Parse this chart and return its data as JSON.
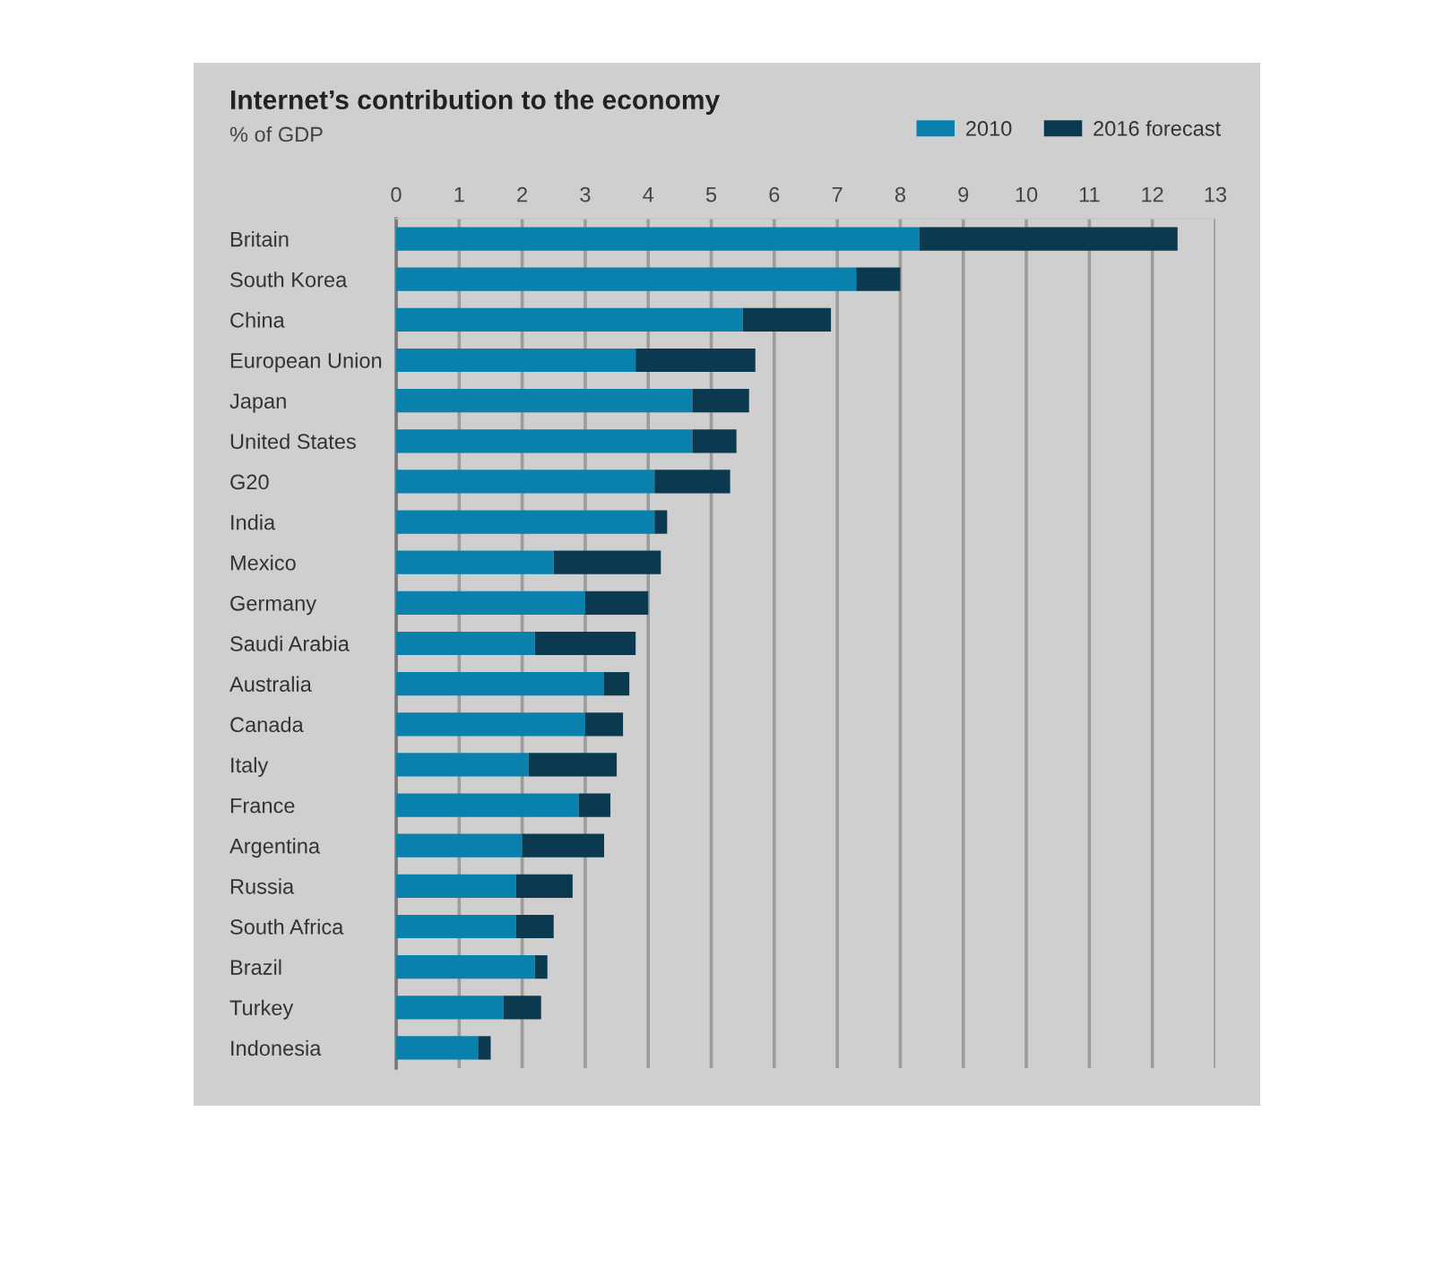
{
  "chart_data": {
    "type": "bar",
    "orientation": "horizontal",
    "stacked": true,
    "title": "Internet’s contribution to the economy",
    "subtitle": "% of GDP",
    "categories": [
      "Britain",
      "South Korea",
      "China",
      "European Union",
      "Japan",
      "United States",
      "G20",
      "India",
      "Mexico",
      "Germany",
      "Saudi Arabia",
      "Australia",
      "Canada",
      "Italy",
      "France",
      "Argentina",
      "Russia",
      "South Africa",
      "Brazil",
      "Turkey",
      "Indonesia"
    ],
    "series": [
      {
        "name": "2010",
        "color": "#0a80ad",
        "values": [
          8.3,
          7.3,
          5.5,
          3.8,
          4.7,
          4.7,
          4.1,
          4.1,
          2.5,
          3.0,
          2.2,
          3.3,
          3.0,
          2.1,
          2.9,
          2.0,
          1.9,
          1.9,
          2.2,
          1.7,
          1.3
        ]
      },
      {
        "name": "2016 forecast",
        "color": "#0b3a50",
        "values": [
          4.1,
          0.7,
          1.4,
          1.9,
          0.9,
          0.7,
          1.2,
          0.2,
          1.7,
          1.0,
          1.6,
          0.4,
          0.6,
          1.4,
          0.5,
          1.3,
          0.9,
          0.6,
          0.2,
          0.6,
          0.2
        ]
      }
    ],
    "xlim": [
      0,
      13
    ],
    "xticks": [
      0,
      1,
      2,
      3,
      4,
      5,
      6,
      7,
      8,
      9,
      10,
      11,
      12,
      13
    ],
    "grid": "x",
    "legend": "top right"
  }
}
